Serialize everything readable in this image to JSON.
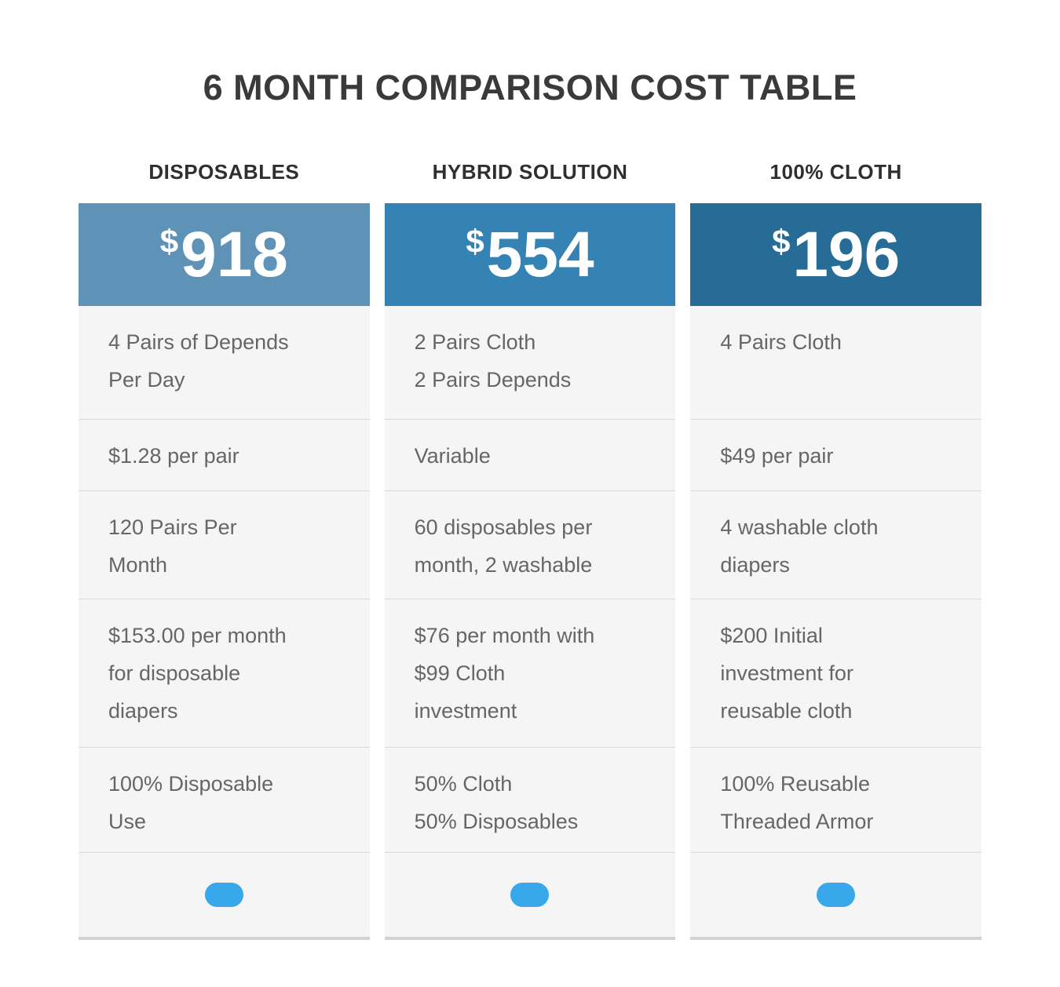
{
  "title": "6 MONTH COMPARISON COST TABLE",
  "colors": {
    "accent_pill": "#38a8ea",
    "row_background": "#f5f5f6",
    "separator": "#d9d9d9",
    "bottom_border": "#d2d2d2",
    "price_text": "#ffffff",
    "body_text": "#666666",
    "heading_text": "#3a3a3a"
  },
  "columns": [
    {
      "label": "DISPOSABLES",
      "currency_symbol": "$",
      "price": "918",
      "header_bg": "#5e92b7",
      "rows": [
        "4 Pairs of Depends\nPer Day",
        "$1.28 per pair",
        "120 Pairs Per\nMonth",
        "$153.00 per month\nfor disposable\ndiapers",
        "100% Disposable\nUse"
      ]
    },
    {
      "label": "HYBRID SOLUTION",
      "currency_symbol": "$",
      "price": "554",
      "header_bg": "#3583b5",
      "rows": [
        "2 Pairs Cloth\n2 Pairs Depends",
        "Variable",
        "60 disposables per\nmonth, 2 washable",
        "$76 per month with\n$99 Cloth\ninvestment",
        "50% Cloth\n50% Disposables"
      ]
    },
    {
      "label": "100% CLOTH",
      "currency_symbol": "$",
      "price": "196",
      "header_bg": "#266c96",
      "rows": [
        "4 Pairs Cloth",
        "$49 per pair",
        "4 washable cloth\ndiapers",
        "$200 Initial\ninvestment for\nreusable cloth",
        "100% Reusable\nThreaded Armor"
      ]
    }
  ],
  "chart_data": {
    "type": "table",
    "title": "6 MONTH COMPARISON COST TABLE",
    "columns": [
      "DISPOSABLES",
      "HYBRID SOLUTION",
      "100% CLOTH"
    ],
    "prices_usd": [
      918,
      554,
      196
    ],
    "rows": [
      [
        "4 Pairs of Depends Per Day",
        "2 Pairs Cloth 2 Pairs Depends",
        "4 Pairs Cloth"
      ],
      [
        "$1.28 per pair",
        "Variable",
        "$49 per pair"
      ],
      [
        "120 Pairs Per Month",
        "60 disposables per month, 2 washable",
        "4 washable cloth diapers"
      ],
      [
        "$153.00 per month for disposable diapers",
        "$76 per month with $99 Cloth investment",
        "$200 Initial investment for reusable cloth"
      ],
      [
        "100% Disposable Use",
        "50% Cloth 50% Disposables",
        "100% Reusable Threaded Armor"
      ]
    ],
    "legend_position": "none",
    "grid": false
  }
}
